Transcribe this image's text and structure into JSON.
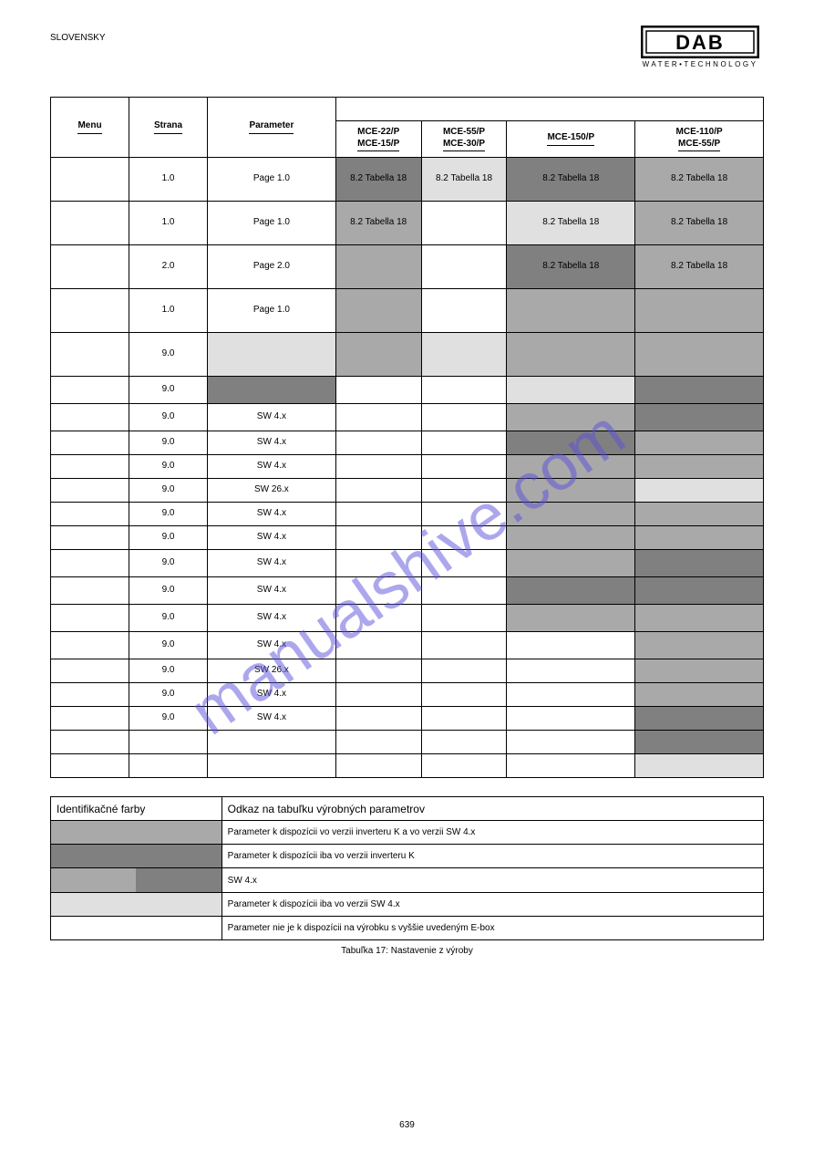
{
  "lang": "SLOVENSKY",
  "logo": {
    "text": "DAB",
    "sub": "WATER•TECHNOLOGY"
  },
  "colors": {
    "white": "#ffffff",
    "light": "#e0e0e0",
    "mid": "#c0c0c0",
    "grey": "#a9a9a9",
    "dark": "#808080"
  },
  "columns": {
    "hdr_A": "Menu",
    "hdr_B": "Strana",
    "hdr_C": "Parameter",
    "hdr_D_top": "MCE-22/P",
    "hdr_D_sub": "MCE-15/P",
    "hdr_E_top": "MCE-55/P",
    "hdr_E_sub": "MCE-30/P",
    "hdr_F": "MCE-150/P",
    "hdr_G_top": "MCE-110/P",
    "hdr_G_sub": "MCE-55/P",
    "widths": [
      "11%",
      "11%",
      "18%",
      "12%",
      "12%",
      "18%",
      "18%"
    ]
  },
  "rows": [
    {
      "h": "tall",
      "B": "1.0",
      "C": "Page 1.0",
      "cells": [
        {
          "t": "8.2 Tabella 18",
          "c": "dark"
        },
        {
          "t": "8.2 Tabella 18",
          "c": "light"
        },
        {
          "t": "8.2 Tabella 18",
          "c": "dark"
        },
        {
          "t": "8.2 Tabella 18",
          "c": "grey"
        }
      ]
    },
    {
      "h": "tall",
      "B": "1.0",
      "C": "Page 1.0",
      "cells": [
        {
          "t": "8.2 Tabella 18",
          "c": "grey"
        },
        {
          "t": "",
          "c": "white"
        },
        {
          "t": "8.2 Tabella 18",
          "c": "light"
        },
        {
          "t": "8.2 Tabella 18",
          "c": "grey"
        }
      ]
    },
    {
      "h": "tall",
      "B": "2.0",
      "C": "Page 2.0",
      "cells": [
        {
          "t": "",
          "c": "grey"
        },
        {
          "t": "",
          "c": "white"
        },
        {
          "t": "8.2 Tabella 18",
          "c": "dark"
        },
        {
          "t": "8.2 Tabella 18",
          "c": "grey"
        }
      ]
    },
    {
      "h": "tall",
      "B": "1.0",
      "C": "Page 1.0",
      "cells": [
        {
          "t": "",
          "c": "grey"
        },
        {
          "t": "",
          "c": "white"
        },
        {
          "t": "",
          "c": "grey"
        },
        {
          "t": "",
          "c": "grey"
        }
      ]
    },
    {
      "h": "tall",
      "B": "9.0",
      "C": "",
      "C_c": "light",
      "cells": [
        {
          "t": "",
          "c": "grey"
        },
        {
          "t": "",
          "c": "light"
        },
        {
          "t": "",
          "c": "grey"
        },
        {
          "t": "",
          "c": "grey"
        }
      ]
    },
    {
      "h": "short",
      "B": "9.0",
      "C": "",
      "C_c": "dark",
      "cells": [
        {
          "t": "",
          "c": "white"
        },
        {
          "t": "",
          "c": "white"
        },
        {
          "t": "",
          "c": "light"
        },
        {
          "t": "",
          "c": "dark"
        }
      ]
    },
    {
      "h": "short",
      "B": "9.0",
      "C": "SW 4.x",
      "cells": [
        {
          "t": "",
          "c": "white"
        },
        {
          "t": "",
          "c": "white"
        },
        {
          "t": "",
          "c": "grey"
        },
        {
          "t": "",
          "c": "dark"
        }
      ]
    },
    {
      "h": "mini",
      "B": "9.0",
      "C": "SW 4.x",
      "cells": [
        {
          "t": "",
          "c": "white"
        },
        {
          "t": "",
          "c": "white"
        },
        {
          "t": "",
          "c": "dark"
        },
        {
          "t": "",
          "c": "grey"
        }
      ]
    },
    {
      "h": "mini",
      "B": "9.0",
      "C": "SW 4.x",
      "cells": [
        {
          "t": "",
          "c": "white"
        },
        {
          "t": "",
          "c": "white"
        },
        {
          "t": "",
          "c": "grey"
        },
        {
          "t": "",
          "c": "grey"
        }
      ]
    },
    {
      "h": "mini",
      "B": "9.0",
      "C": "SW 26.x",
      "cells": [
        {
          "t": "",
          "c": "white"
        },
        {
          "t": "",
          "c": "white"
        },
        {
          "t": "",
          "c": "grey"
        },
        {
          "t": "",
          "c": "light"
        }
      ]
    },
    {
      "h": "mini",
      "B": "9.0",
      "C": "SW 4.x",
      "cells": [
        {
          "t": "",
          "c": "white"
        },
        {
          "t": "",
          "c": "white"
        },
        {
          "t": "",
          "c": "grey"
        },
        {
          "t": "",
          "c": "grey"
        }
      ]
    },
    {
      "h": "mini",
      "B": "9.0",
      "C": "SW 4.x",
      "cells": [
        {
          "t": "",
          "c": "white"
        },
        {
          "t": "",
          "c": "white"
        },
        {
          "t": "",
          "c": "grey"
        },
        {
          "t": "",
          "c": "grey"
        }
      ]
    },
    {
      "h": "short",
      "B": "9.0",
      "C": "SW 4.x",
      "cells": [
        {
          "t": "",
          "c": "white"
        },
        {
          "t": "",
          "c": "white"
        },
        {
          "t": "",
          "c": "grey"
        },
        {
          "t": "",
          "c": "dark"
        }
      ]
    },
    {
      "h": "short",
      "B": "9.0",
      "C": "SW 4.x",
      "cells": [
        {
          "t": "",
          "c": "white"
        },
        {
          "t": "",
          "c": "white"
        },
        {
          "t": "",
          "c": "dark"
        },
        {
          "t": "",
          "c": "dark"
        }
      ]
    },
    {
      "h": "short",
      "B": "9.0",
      "C": "SW 4.x",
      "cells": [
        {
          "t": "",
          "c": "white"
        },
        {
          "t": "",
          "c": "white"
        },
        {
          "t": "",
          "c": "grey"
        },
        {
          "t": "",
          "c": "grey"
        }
      ]
    },
    {
      "h": "short",
      "B": "9.0",
      "C": "SW 4.x",
      "cells": [
        {
          "t": "",
          "c": "white"
        },
        {
          "t": "",
          "c": "white"
        },
        {
          "t": "",
          "c": "white"
        },
        {
          "t": "",
          "c": "grey"
        }
      ]
    },
    {
      "h": "mini",
      "B": "9.0",
      "C": "SW 26.x",
      "cells": [
        {
          "t": "",
          "c": "white"
        },
        {
          "t": "",
          "c": "white"
        },
        {
          "t": "",
          "c": "white"
        },
        {
          "t": "",
          "c": "grey"
        }
      ]
    },
    {
      "h": "mini",
      "B": "9.0",
      "C": "SW 4.x",
      "cells": [
        {
          "t": "",
          "c": "white"
        },
        {
          "t": "",
          "c": "white"
        },
        {
          "t": "",
          "c": "white"
        },
        {
          "t": "",
          "c": "grey"
        }
      ]
    },
    {
      "h": "mini",
      "B": "9.0",
      "C": "SW 4.x",
      "cells": [
        {
          "t": "",
          "c": "white"
        },
        {
          "t": "",
          "c": "white"
        },
        {
          "t": "",
          "c": "white"
        },
        {
          "t": "",
          "c": "dark"
        }
      ]
    },
    {
      "h": "mini",
      "B": "",
      "C": "",
      "cells": [
        {
          "t": "",
          "c": "white"
        },
        {
          "t": "",
          "c": "white"
        },
        {
          "t": "",
          "c": "white"
        },
        {
          "t": "",
          "c": "dark"
        }
      ]
    },
    {
      "h": "mini",
      "B": "",
      "C": "",
      "cells": [
        {
          "t": "",
          "c": "white"
        },
        {
          "t": "",
          "c": "white"
        },
        {
          "t": "",
          "c": "white"
        },
        {
          "t": "",
          "c": "light"
        }
      ]
    }
  ],
  "legend": {
    "head": "Identifikačné farby",
    "head2": "Odkaz na tabuľku výrobných parametrov",
    "rows": [
      {
        "c": "grey",
        "t": "Parameter k dispozícii vo verzii inverteru K a vo verzii SW 4.x"
      },
      {
        "c": "dark",
        "t": "Parameter k dispozícii iba vo verzii inverteru K"
      },
      {
        "split_c1": "grey",
        "split_c2": "dark",
        "t": "SW 4.x"
      },
      {
        "c": "light",
        "t": "Parameter k dispozícii iba vo verzii SW 4.x"
      },
      {
        "c": "white",
        "t": "Parameter nie je k dispozícii na výrobku s vyššie uvedeným E-box"
      }
    ]
  },
  "caption": "Tabuľka 17: Nastavenie z výroby",
  "page": "639",
  "watermark": "manualshive.com"
}
